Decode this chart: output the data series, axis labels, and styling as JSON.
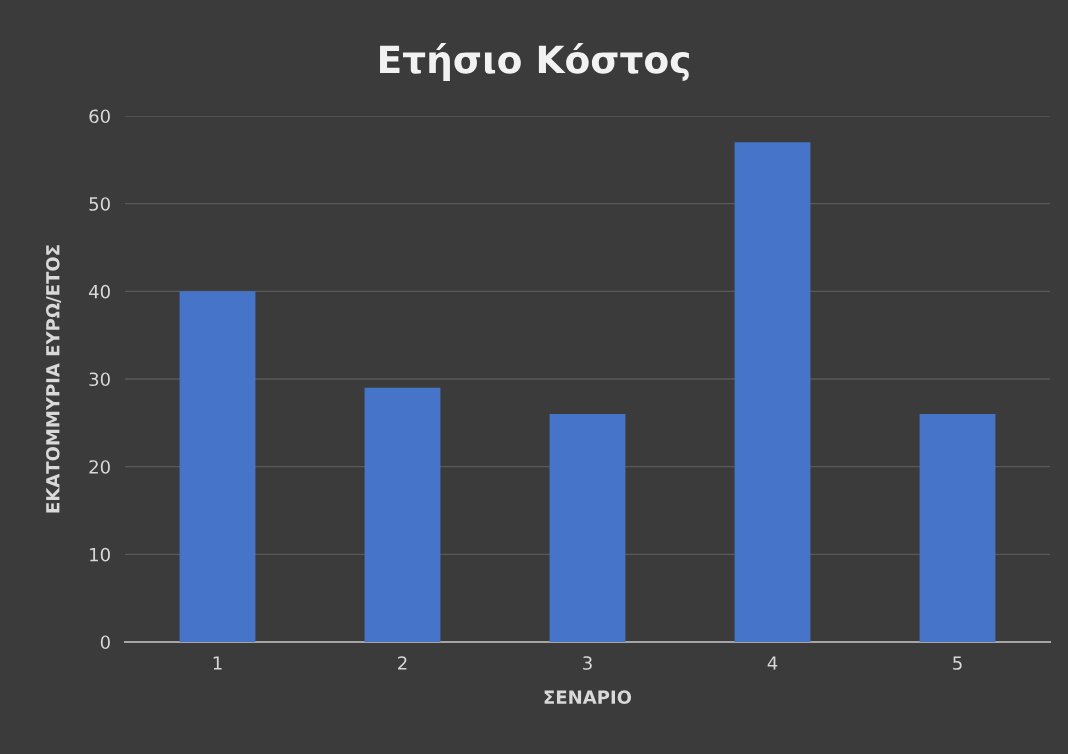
{
  "chart_data": {
    "type": "bar",
    "title": "Ετήσιο Κόστος",
    "xlabel": "ΣΕΝΑΡΙΟ",
    "ylabel": "ΕΚΑΤΟΜΜΥΡΙΑ ΕΥΡΩ/ΕΤΟΣ",
    "categories": [
      "1",
      "2",
      "3",
      "4",
      "5"
    ],
    "values": [
      40,
      29,
      26,
      57,
      26
    ],
    "color": "#4674c8",
    "ylim": [
      0,
      60
    ],
    "yticks": [
      0,
      10,
      20,
      30,
      40,
      50,
      60
    ],
    "grid": "y",
    "legend": false
  }
}
